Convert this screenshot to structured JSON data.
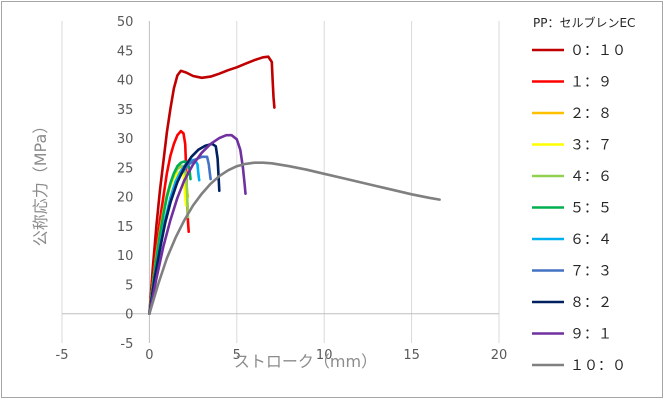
{
  "chart_data": {
    "type": "line",
    "title": "",
    "xlabel": "ストローク（mm）",
    "ylabel": "公称応力（MPa）",
    "xlim": [
      -5,
      20
    ],
    "ylim": [
      -5,
      50
    ],
    "xticks": [
      -5,
      0,
      5,
      10,
      15,
      20
    ],
    "yticks": [
      -5,
      0,
      5,
      10,
      15,
      20,
      25,
      30,
      35,
      40,
      45,
      50
    ],
    "grid": "vertical",
    "legend_position": "right",
    "legend_title": "PP：セルブレンEC",
    "series": [
      {
        "name": "０：１０",
        "color": "#c00000",
        "points": [
          [
            0,
            0
          ],
          [
            0.2,
            8
          ],
          [
            0.4,
            15
          ],
          [
            0.6,
            21
          ],
          [
            0.8,
            26
          ],
          [
            1.0,
            31
          ],
          [
            1.2,
            35
          ],
          [
            1.4,
            38.5
          ],
          [
            1.6,
            40.7
          ],
          [
            1.8,
            41.5
          ],
          [
            2.1,
            41.2
          ],
          [
            2.5,
            40.6
          ],
          [
            3.0,
            40.3
          ],
          [
            3.5,
            40.5
          ],
          [
            4.0,
            41.0
          ],
          [
            4.5,
            41.6
          ],
          [
            5.0,
            42.1
          ],
          [
            5.5,
            42.7
          ],
          [
            6.0,
            43.3
          ],
          [
            6.5,
            43.8
          ],
          [
            6.8,
            43.9
          ],
          [
            7.0,
            43.0
          ],
          [
            7.05,
            40.0
          ],
          [
            7.1,
            37.0
          ],
          [
            7.15,
            35.2
          ]
        ]
      },
      {
        "name": "１：９",
        "color": "#ff0000",
        "points": [
          [
            0,
            0
          ],
          [
            0.2,
            6
          ],
          [
            0.4,
            11
          ],
          [
            0.6,
            16
          ],
          [
            0.8,
            20
          ],
          [
            1.0,
            24
          ],
          [
            1.2,
            27
          ],
          [
            1.4,
            29
          ],
          [
            1.6,
            30.5
          ],
          [
            1.8,
            31.2
          ],
          [
            1.95,
            30.8
          ],
          [
            2.05,
            29.0
          ],
          [
            2.1,
            25.0
          ],
          [
            2.15,
            20.0
          ],
          [
            2.2,
            16.0
          ],
          [
            2.25,
            14.0
          ]
        ]
      },
      {
        "name": "２：８",
        "color": "#ffc000",
        "points": [
          [
            0,
            0
          ],
          [
            0.2,
            5
          ],
          [
            0.4,
            10
          ],
          [
            0.6,
            14
          ],
          [
            0.8,
            17.5
          ],
          [
            1.0,
            20.3
          ],
          [
            1.2,
            22.3
          ],
          [
            1.4,
            23.8
          ],
          [
            1.6,
            24.7
          ],
          [
            1.8,
            25.1
          ],
          [
            2.0,
            25.0
          ],
          [
            2.1,
            23.0
          ],
          [
            2.15,
            21.0
          ],
          [
            2.2,
            20.0
          ]
        ]
      },
      {
        "name": "３：７",
        "color": "#ffff00",
        "points": [
          [
            0,
            0
          ],
          [
            0.2,
            5
          ],
          [
            0.4,
            9.5
          ],
          [
            0.6,
            13.5
          ],
          [
            0.8,
            17
          ],
          [
            1.0,
            19.8
          ],
          [
            1.2,
            21.8
          ],
          [
            1.4,
            23.2
          ],
          [
            1.6,
            24.0
          ],
          [
            1.8,
            24.3
          ],
          [
            1.95,
            24.0
          ],
          [
            2.0,
            22.0
          ],
          [
            2.05,
            20.0
          ],
          [
            2.1,
            18.5
          ]
        ]
      },
      {
        "name": "４：６",
        "color": "#92d050",
        "points": [
          [
            0,
            0
          ],
          [
            0.2,
            5
          ],
          [
            0.4,
            9.5
          ],
          [
            0.6,
            13.5
          ],
          [
            0.8,
            17
          ],
          [
            1.0,
            20
          ],
          [
            1.2,
            22.2
          ],
          [
            1.4,
            23.8
          ],
          [
            1.6,
            24.8
          ],
          [
            1.8,
            25.3
          ],
          [
            2.0,
            25.2
          ],
          [
            2.1,
            23.5
          ],
          [
            2.15,
            21.0
          ],
          [
            2.2,
            16.5
          ]
        ]
      },
      {
        "name": "５：５",
        "color": "#00b050",
        "points": [
          [
            0,
            0
          ],
          [
            0.2,
            5
          ],
          [
            0.4,
            9.5
          ],
          [
            0.6,
            13.5
          ],
          [
            0.8,
            17
          ],
          [
            1.0,
            20
          ],
          [
            1.2,
            22.3
          ],
          [
            1.4,
            24.0
          ],
          [
            1.6,
            25.2
          ],
          [
            1.8,
            25.8
          ],
          [
            2.0,
            26.0
          ],
          [
            2.2,
            25.8
          ],
          [
            2.3,
            24.5
          ],
          [
            2.35,
            23.0
          ]
        ]
      },
      {
        "name": "６：４",
        "color": "#00b0f0",
        "points": [
          [
            0,
            0
          ],
          [
            0.3,
            6
          ],
          [
            0.6,
            11.5
          ],
          [
            0.9,
            16
          ],
          [
            1.2,
            19.8
          ],
          [
            1.5,
            22.6
          ],
          [
            1.8,
            24.4
          ],
          [
            2.1,
            25.6
          ],
          [
            2.4,
            26.2
          ],
          [
            2.6,
            26.3
          ],
          [
            2.75,
            25.5
          ],
          [
            2.8,
            24.0
          ],
          [
            2.85,
            22.8
          ]
        ]
      },
      {
        "name": "７：３",
        "color": "#4472c4",
        "points": [
          [
            0,
            0
          ],
          [
            0.3,
            6
          ],
          [
            0.6,
            11
          ],
          [
            0.9,
            15.5
          ],
          [
            1.2,
            19
          ],
          [
            1.5,
            21.8
          ],
          [
            1.8,
            23.8
          ],
          [
            2.2,
            25.4
          ],
          [
            2.6,
            26.3
          ],
          [
            3.0,
            26.8
          ],
          [
            3.3,
            26.8
          ],
          [
            3.4,
            25.5
          ],
          [
            3.45,
            24.2
          ],
          [
            3.5,
            23.0
          ]
        ]
      },
      {
        "name": "８：２",
        "color": "#002060",
        "points": [
          [
            0,
            0
          ],
          [
            0.3,
            6
          ],
          [
            0.6,
            11
          ],
          [
            0.9,
            15.5
          ],
          [
            1.2,
            19
          ],
          [
            1.6,
            22.5
          ],
          [
            2.0,
            25.0
          ],
          [
            2.4,
            26.8
          ],
          [
            2.8,
            28.0
          ],
          [
            3.2,
            28.7
          ],
          [
            3.6,
            29.0
          ],
          [
            3.8,
            28.6
          ],
          [
            3.9,
            26.5
          ],
          [
            3.95,
            24.0
          ],
          [
            4.0,
            21.0
          ]
        ]
      },
      {
        "name": "９：１",
        "color": "#7030a0",
        "points": [
          [
            0,
            0
          ],
          [
            0.4,
            6
          ],
          [
            0.8,
            11.5
          ],
          [
            1.2,
            16
          ],
          [
            1.6,
            19.8
          ],
          [
            2.0,
            22.8
          ],
          [
            2.5,
            25.5
          ],
          [
            3.0,
            27.5
          ],
          [
            3.5,
            29.0
          ],
          [
            4.0,
            30.0
          ],
          [
            4.4,
            30.5
          ],
          [
            4.7,
            30.5
          ],
          [
            5.0,
            29.8
          ],
          [
            5.2,
            28.0
          ],
          [
            5.35,
            25.0
          ],
          [
            5.45,
            22.0
          ],
          [
            5.5,
            20.5
          ]
        ]
      },
      {
        "name": "１０：０",
        "color": "#808080",
        "points": [
          [
            0,
            0
          ],
          [
            0.5,
            5
          ],
          [
            1,
            9.5
          ],
          [
            1.5,
            13
          ],
          [
            2,
            16
          ],
          [
            2.5,
            18.5
          ],
          [
            3,
            20.5
          ],
          [
            3.5,
            22.2
          ],
          [
            4,
            23.5
          ],
          [
            4.5,
            24.5
          ],
          [
            5,
            25.2
          ],
          [
            5.5,
            25.6
          ],
          [
            6,
            25.8
          ],
          [
            6.5,
            25.8
          ],
          [
            7,
            25.7
          ],
          [
            8,
            25.2
          ],
          [
            9,
            24.6
          ],
          [
            10,
            23.9
          ],
          [
            11,
            23.2
          ],
          [
            12,
            22.5
          ],
          [
            13,
            21.8
          ],
          [
            14,
            21.1
          ],
          [
            15,
            20.4
          ],
          [
            16,
            19.8
          ],
          [
            16.6,
            19.5
          ]
        ]
      }
    ]
  }
}
